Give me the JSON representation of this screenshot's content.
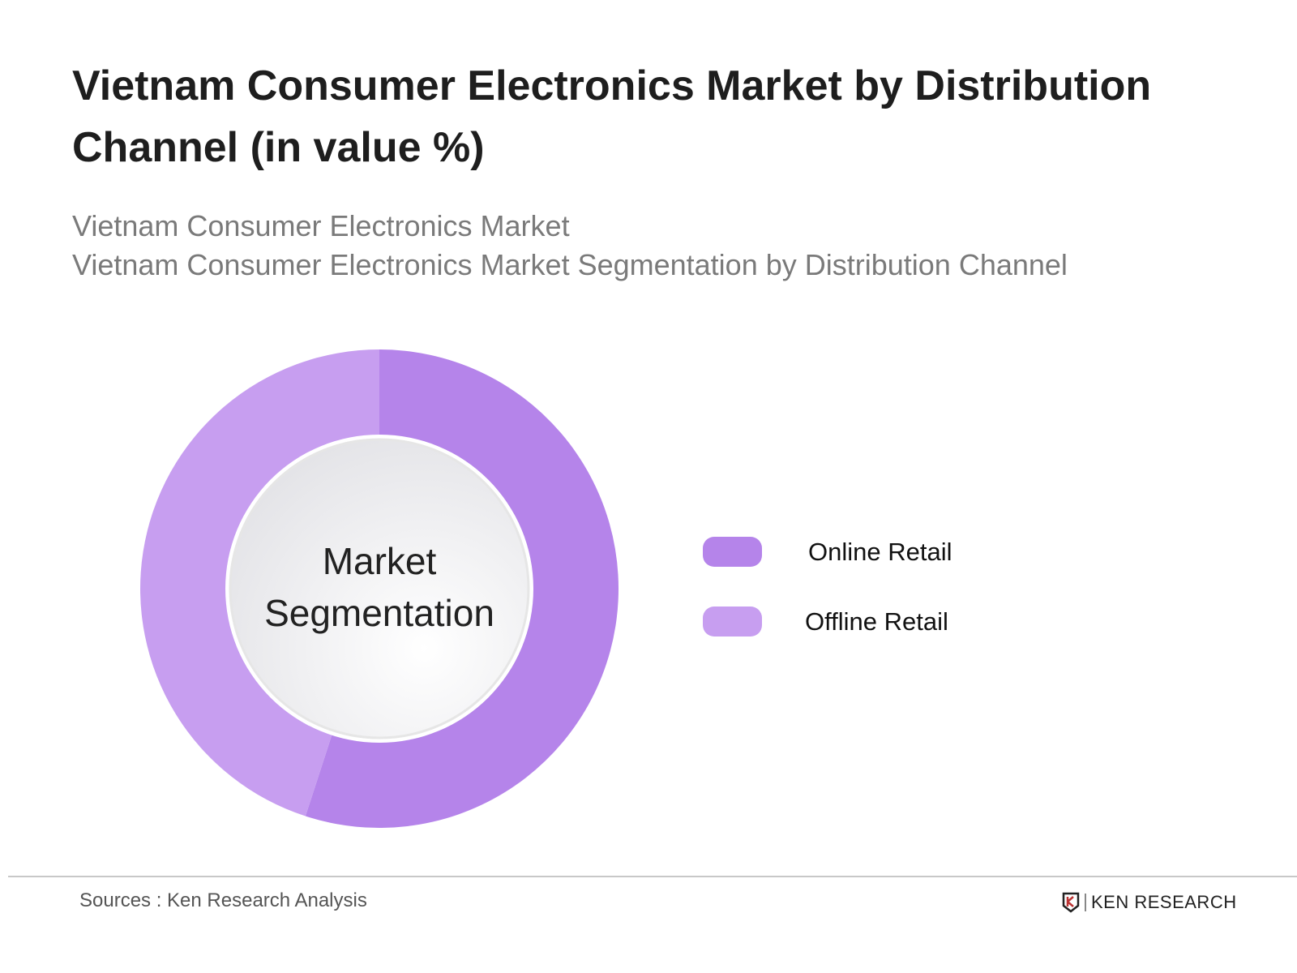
{
  "title": "Vietnam Consumer Electronics Market by Distribution Channel (in value %)",
  "subtitle_lines": [
    "Vietnam Consumer Electronics Market",
    "Vietnam Consumer Electronics Market Segmentation by Distribution Channel"
  ],
  "chart_data": {
    "type": "pie",
    "variant": "donut",
    "center_label_lines": [
      "Market",
      "Segmentation"
    ],
    "categories": [
      "Online Retail",
      "Offline Retail"
    ],
    "values": [
      55,
      45
    ],
    "colors": [
      "#b584ea",
      "#c79ef0"
    ],
    "legend_position": "right"
  },
  "footer": {
    "source": "Sources : Ken Research Analysis",
    "logo_text": "KEN RESEARCH"
  }
}
